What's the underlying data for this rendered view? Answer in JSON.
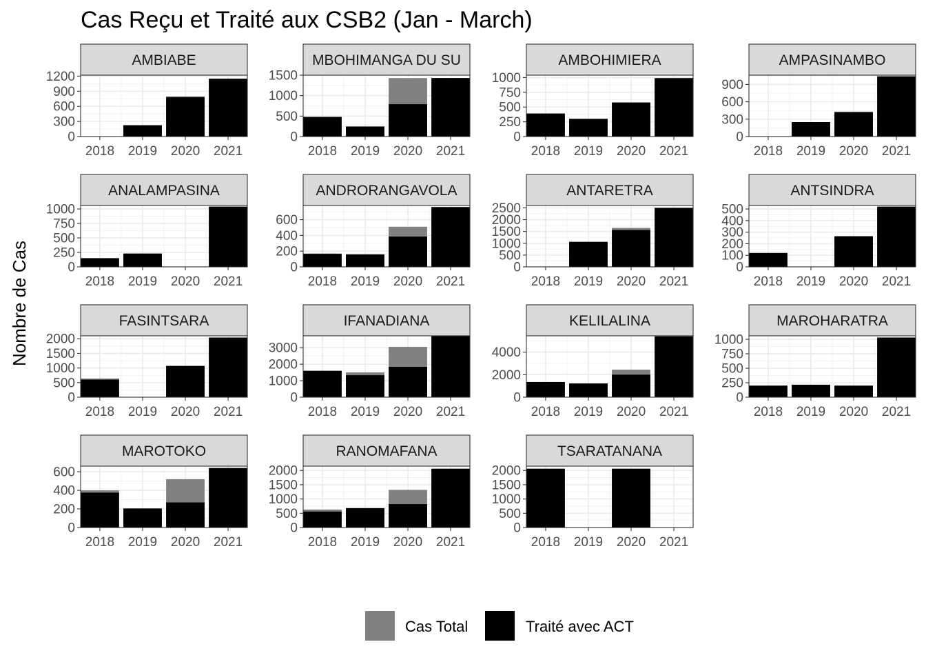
{
  "chart_data": {
    "type": "bar",
    "title": "Cas Reçu et Traité aux CSB2 (Jan - March)",
    "xlabel": "",
    "ylabel": "Nombre de Cas",
    "layout": "facet grid, 4 columns, free scales",
    "grid": true,
    "legend_position": "bottom",
    "colors": {
      "Cas Total": "#808080",
      "Traité avec ACT": "#000000"
    },
    "legend": [
      {
        "name": "Cas Total",
        "color": "#808080"
      },
      {
        "name": "Traité avec ACT",
        "color": "#000000"
      }
    ],
    "panels": [
      {
        "name": "AMBIABE",
        "strip": "AMBIABE",
        "ylim": [
          0,
          1220
        ],
        "yticks": [
          0,
          300,
          600,
          900,
          1200
        ],
        "xlim": [
          2017.55,
          2021.45
        ],
        "x": [
          2018,
          2019,
          2020,
          2021
        ],
        "total": [
          0,
          225,
          800,
          1150
        ],
        "act": [
          0,
          225,
          780,
          1150
        ]
      },
      {
        "name": "AMBOHIMANGA DU SUD",
        "strip": "MBOHIMANGA DU SU",
        "ylim": [
          0,
          1500
        ],
        "yticks": [
          0,
          500,
          1000,
          1500
        ],
        "xlim": [
          2017.55,
          2021.45
        ],
        "x": [
          2018,
          2019,
          2020,
          2021
        ],
        "total": [
          480,
          245,
          1430,
          1430
        ],
        "act": [
          480,
          245,
          790,
          1430
        ]
      },
      {
        "name": "AMBOHIMIERA",
        "strip": "AMBOHIMIERA",
        "ylim": [
          0,
          1040
        ],
        "yticks": [
          0,
          250,
          500,
          750,
          1000
        ],
        "xlim": [
          2017.55,
          2021.45
        ],
        "x": [
          2018,
          2019,
          2020,
          2021
        ],
        "total": [
          390,
          300,
          580,
          990
        ],
        "act": [
          390,
          300,
          575,
          990
        ]
      },
      {
        "name": "AMPASINAMBO",
        "strip": "AMPASINAMBO",
        "ylim": [
          0,
          1060
        ],
        "yticks": [
          0,
          300,
          600,
          900
        ],
        "xlim": [
          2017.55,
          2021.45
        ],
        "x": [
          2018,
          2019,
          2020,
          2021
        ],
        "total": [
          0,
          250,
          430,
          1040
        ],
        "act": [
          0,
          250,
          420,
          1040
        ]
      },
      {
        "name": "ANALAMPASINA",
        "strip": "ANALAMPASINA",
        "ylim": [
          0,
          1060
        ],
        "yticks": [
          0,
          250,
          500,
          750,
          1000
        ],
        "xlim": [
          2017.55,
          2021.45
        ],
        "x": [
          2018,
          2019,
          2020,
          2021
        ],
        "total": [
          150,
          230,
          0,
          1040
        ],
        "act": [
          150,
          230,
          0,
          1040
        ]
      },
      {
        "name": "ANDRORANGAVOLA",
        "strip": "ANDRORANGAVOLA",
        "ylim": [
          0,
          780
        ],
        "yticks": [
          0,
          200,
          400,
          600
        ],
        "xlim": [
          2017.55,
          2021.45
        ],
        "x": [
          2018,
          2019,
          2020,
          2021
        ],
        "total": [
          170,
          165,
          510,
          760
        ],
        "act": [
          165,
          155,
          385,
          760
        ]
      },
      {
        "name": "ANTARETRA",
        "strip": "ANTARETRA",
        "ylim": [
          0,
          2600
        ],
        "yticks": [
          0,
          500,
          1000,
          1500,
          2000,
          2500
        ],
        "xlim": [
          2017.55,
          2021.45
        ],
        "x": [
          2018,
          2019,
          2020,
          2021
        ],
        "total": [
          0,
          1060,
          1650,
          2500
        ],
        "act": [
          0,
          1060,
          1560,
          2500
        ]
      },
      {
        "name": "ANTSINDRA",
        "strip": "ANTSINDRA",
        "ylim": [
          0,
          530
        ],
        "yticks": [
          0,
          100,
          200,
          300,
          400,
          500
        ],
        "xlim": [
          2017.55,
          2021.45
        ],
        "x": [
          2018,
          2019,
          2020,
          2021
        ],
        "total": [
          120,
          0,
          265,
          520
        ],
        "act": [
          120,
          0,
          265,
          520
        ]
      },
      {
        "name": "FASINTSARA",
        "strip": "FASINTSARA",
        "ylim": [
          0,
          2100
        ],
        "yticks": [
          0,
          500,
          1000,
          1500,
          2000
        ],
        "xlim": [
          2017.55,
          2021.45
        ],
        "x": [
          2018,
          2019,
          2020,
          2021
        ],
        "total": [
          640,
          0,
          1070,
          2040
        ],
        "act": [
          600,
          0,
          1070,
          2040
        ]
      },
      {
        "name": "IFANADIANA",
        "strip": "IFANADIANA",
        "ylim": [
          0,
          3720
        ],
        "yticks": [
          0,
          1000,
          2000,
          3000
        ],
        "xlim": [
          2017.55,
          2021.45
        ],
        "x": [
          2018,
          2019,
          2020,
          2021
        ],
        "total": [
          1600,
          1500,
          3050,
          3700
        ],
        "act": [
          1600,
          1330,
          1840,
          3700
        ]
      },
      {
        "name": "KELILALINA",
        "strip": "KELILALINA",
        "ylim": [
          0,
          5450
        ],
        "yticks": [
          0,
          2000,
          4000
        ],
        "xlim": [
          2017.55,
          2021.45
        ],
        "x": [
          2018,
          2019,
          2020,
          2021
        ],
        "total": [
          1350,
          1220,
          2450,
          5400
        ],
        "act": [
          1350,
          1220,
          2000,
          5400
        ]
      },
      {
        "name": "MAROHARATRA",
        "strip": "MAROHARATRA",
        "ylim": [
          0,
          1060
        ],
        "yticks": [
          0,
          250,
          500,
          750,
          1000
        ],
        "xlim": [
          2017.55,
          2021.45
        ],
        "x": [
          2018,
          2019,
          2020,
          2021
        ],
        "total": [
          200,
          215,
          200,
          1030
        ],
        "act": [
          200,
          215,
          200,
          1030
        ]
      },
      {
        "name": "MAROTOKO",
        "strip": "MAROTOKO",
        "ylim": [
          0,
          660
        ],
        "yticks": [
          0,
          200,
          400,
          600
        ],
        "xlim": [
          2017.55,
          2021.45
        ],
        "x": [
          2018,
          2019,
          2020,
          2021
        ],
        "total": [
          400,
          205,
          520,
          640
        ],
        "act": [
          375,
          205,
          270,
          640
        ]
      },
      {
        "name": "RANOMAFANA",
        "strip": "RANOMAFANA",
        "ylim": [
          0,
          2150
        ],
        "yticks": [
          0,
          500,
          1000,
          1500,
          2000
        ],
        "xlim": [
          2017.55,
          2021.45
        ],
        "x": [
          2018,
          2019,
          2020,
          2021
        ],
        "total": [
          630,
          680,
          1320,
          2060
        ],
        "act": [
          560,
          680,
          820,
          2060
        ]
      },
      {
        "name": "TSARATANANA",
        "strip": "TSARATANANA",
        "ylim": [
          0,
          2150
        ],
        "yticks": [
          0,
          500,
          1000,
          1500,
          2000
        ],
        "xlim": [
          2017.55,
          2021.45
        ],
        "x": [
          2018,
          2019,
          2020,
          2021
        ],
        "total": [
          2060,
          0,
          2060,
          0
        ],
        "act": [
          2060,
          0,
          2060,
          0
        ]
      }
    ]
  }
}
